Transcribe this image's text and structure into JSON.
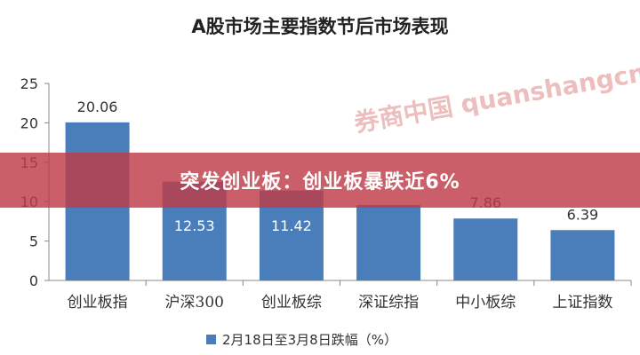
{
  "chart_data": {
    "type": "bar",
    "title": "A股市场主要指数节后市场表现",
    "categories": [
      "创业板指",
      "沪深300",
      "创业板综",
      "深证综指",
      "中小板综",
      "上证指数"
    ],
    "series": [
      {
        "name": "2月18日至3月8日跌幅（%）",
        "values": [
          20.06,
          12.53,
          11.42,
          9.57,
          7.86,
          6.39
        ],
        "labels": [
          "20.06",
          "12.53",
          "11.42",
          "",
          "7.86",
          "6.39"
        ]
      }
    ],
    "ylim": [
      0,
      25
    ],
    "yticks": [
      0,
      5,
      10,
      15,
      20,
      25
    ],
    "grid": false,
    "legend": "bottom",
    "color": "#4a7ebb"
  },
  "banner": {
    "text": "突发创业板：创业板暴跌近6%"
  },
  "watermark": "券商中国 quanshangcn"
}
